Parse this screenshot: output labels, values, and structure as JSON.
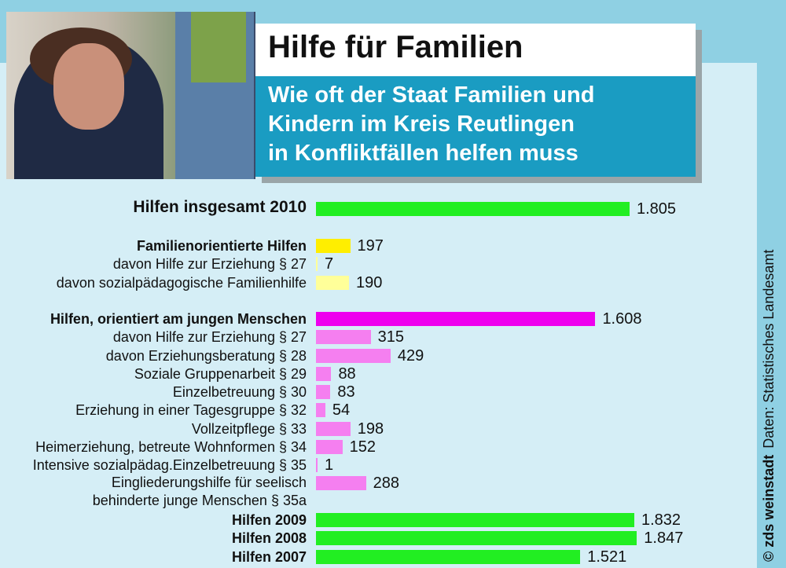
{
  "header": {
    "title": "Hilfe für Familien",
    "subtitle": "Wie oft der Staat Familien und\nKindern im Kreis Reutlingen\nin Konfliktfällen helfen muss"
  },
  "credit": {
    "publisher": "© zds weinstadt",
    "source": "Daten: Statistisches Landesamt"
  },
  "colors": {
    "total": "#22ee22",
    "family": "#ffee00",
    "family_sub": "#ffff99",
    "young": "#ee00ee",
    "young_sub": "#f57ff0"
  },
  "chart_data": {
    "type": "bar",
    "orientation": "horizontal",
    "xlim": [
      0,
      1900
    ],
    "categories": [
      "Hilfen insgesamt 2010",
      "Familienorientierte Hilfen",
      "davon Hilfe zur Erziehung § 27",
      "davon sozialpädagogische Familienhilfe",
      "Hilfen, orientiert am jungen Menschen",
      "davon Hilfe zur Erziehung § 27",
      "davon Erziehungsberatung § 28",
      "Soziale Gruppenarbeit § 29",
      "Einzelbetreuung § 30",
      "Erziehung in einer Tagesgruppe § 32",
      "Vollzeitpflege § 33",
      "Heimerziehung, betreute Wohnformen § 34",
      "Intensive sozialpädag.Einzelbetreuung § 35",
      "Eingliederungshilfe für seelisch behinderte junge Menschen § 35a",
      "Hilfen 2009",
      "Hilfen 2008",
      "Hilfen 2007"
    ],
    "values": [
      1805,
      197,
      7,
      190,
      1608,
      315,
      429,
      88,
      83,
      54,
      198,
      152,
      1,
      288,
      1832,
      1847,
      1521
    ],
    "labels": [
      "1.805",
      "197",
      "7",
      "190",
      "1.608",
      "315",
      "429",
      "88",
      "83",
      "54",
      "198",
      "152",
      "1",
      "288",
      "1.832",
      "1.847",
      "1.521"
    ]
  }
}
